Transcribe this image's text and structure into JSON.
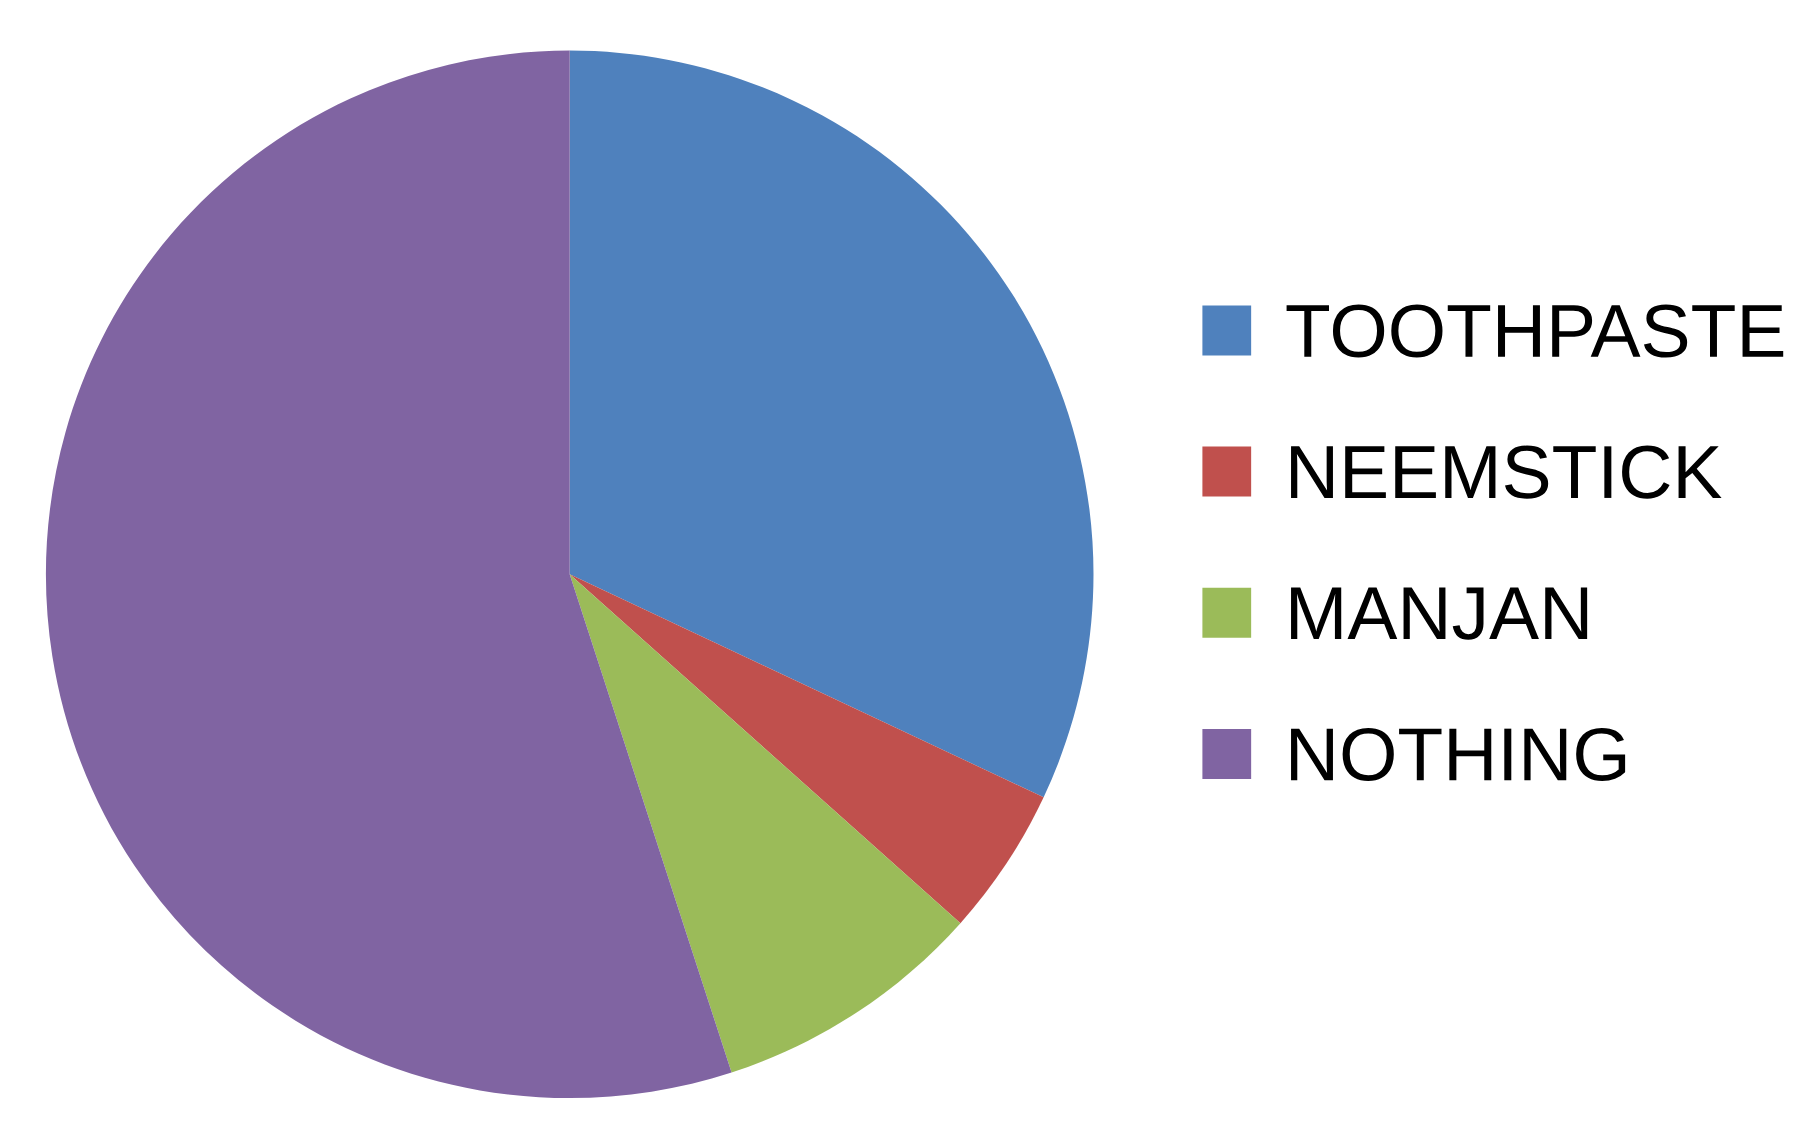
{
  "chart_data": {
    "type": "pie",
    "categories": [
      "TOOTHPASTE",
      "NEEMSTICK",
      "MANJAN",
      "NOTHING"
    ],
    "values": [
      32,
      4.6,
      8.4,
      55
    ],
    "colors": [
      "#4f81bd",
      "#c0504d",
      "#9bbb59",
      "#8064a2"
    ],
    "legend": "right"
  }
}
